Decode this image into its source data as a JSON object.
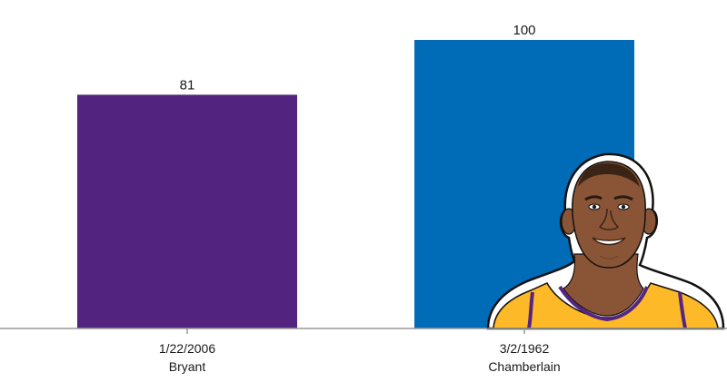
{
  "chart_data": {
    "type": "bar",
    "categories": [
      {
        "date": "1/22/2006",
        "player": "Bryant"
      },
      {
        "date": "3/2/1962",
        "player": "Chamberlain"
      }
    ],
    "values": [
      81,
      100
    ],
    "bar_colors": [
      "#52237f",
      "#006bb6"
    ],
    "ylim": [
      0,
      100
    ],
    "grid": false,
    "axis_color": "#999999"
  },
  "illustration": {
    "subject": "player-avatar",
    "jersey_color": "#fdb927",
    "trim_color": "#552583",
    "skin_color": "#8a5536"
  }
}
